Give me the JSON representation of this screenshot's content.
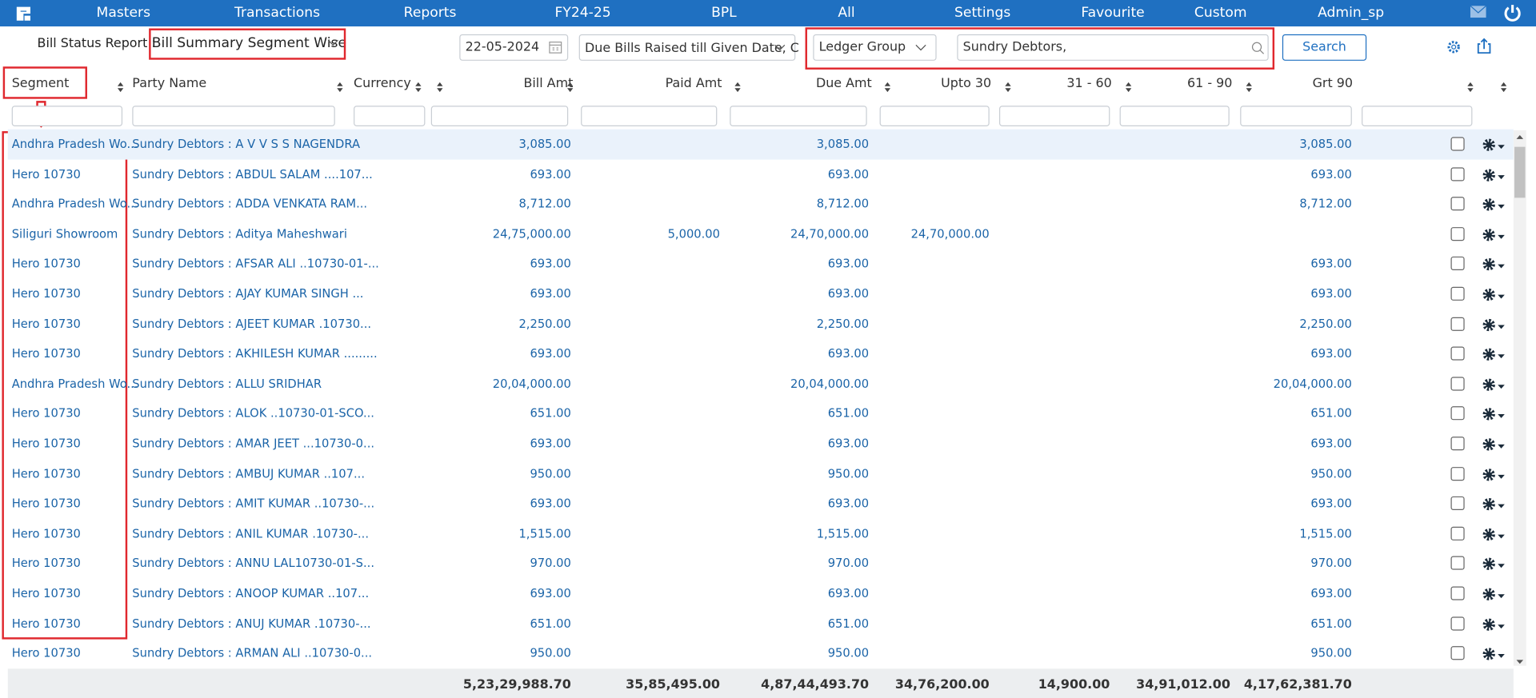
{
  "nav": [
    "Masters",
    "Transactions",
    "Reports",
    "FY24-25",
    "BPL",
    "All",
    "Settings",
    "Favourite",
    "Custom",
    "Admin_sp"
  ],
  "report": {
    "label": "Bill Status Report :",
    "name": "Bill Summary Segment Wise"
  },
  "filters": {
    "date": "22-05-2024",
    "due_option": "Due Bills Raised till Given Date, C",
    "ledger_type": "Ledger Group",
    "ledger_value": "Sundry Debtors,",
    "search": "Search"
  },
  "table": {
    "columns": [
      "Segment",
      "Party Name",
      "Currency",
      "Bill Amt",
      "Paid Amt",
      "Due Amt",
      "Upto 30",
      "31 - 60",
      "61 - 90",
      "Grt 90"
    ],
    "rows": [
      {
        "segment": "Andhra Pradesh Wo...",
        "party": "Sundry Debtors : A V V S S NAGENDRA",
        "bill": "3,085.00",
        "due": "3,085.00",
        "grt90": "3,085.00"
      },
      {
        "segment": "Hero 10730",
        "party": "Sundry Debtors : ABDUL SALAM ....107...",
        "bill": "693.00",
        "due": "693.00",
        "grt90": "693.00"
      },
      {
        "segment": "Andhra Pradesh Wo...",
        "party": "Sundry Debtors : ADDA VENKATA RAM...",
        "bill": "8,712.00",
        "due": "8,712.00",
        "grt90": "8,712.00"
      },
      {
        "segment": "Siliguri Showroom",
        "party": "Sundry Debtors : Aditya Maheshwari",
        "bill": "24,75,000.00",
        "paid": "5,000.00",
        "due": "24,70,000.00",
        "upto30": "24,70,000.00"
      },
      {
        "segment": "Hero 10730",
        "party": "Sundry Debtors : AFSAR ALI ..10730-01-...",
        "bill": "693.00",
        "due": "693.00",
        "grt90": "693.00"
      },
      {
        "segment": "Hero 10730",
        "party": "Sundry Debtors : AJAY KUMAR SINGH ...",
        "bill": "693.00",
        "due": "693.00",
        "grt90": "693.00"
      },
      {
        "segment": "Hero 10730",
        "party": "Sundry Debtors : AJEET KUMAR .10730...",
        "bill": "2,250.00",
        "due": "2,250.00",
        "grt90": "2,250.00"
      },
      {
        "segment": "Hero 10730",
        "party": "Sundry Debtors : AKHILESH KUMAR .........",
        "bill": "693.00",
        "due": "693.00",
        "grt90": "693.00"
      },
      {
        "segment": "Andhra Pradesh Wo...",
        "party": "Sundry Debtors : ALLU SRIDHAR",
        "bill": "20,04,000.00",
        "due": "20,04,000.00",
        "grt90": "20,04,000.00"
      },
      {
        "segment": "Hero 10730",
        "party": "Sundry Debtors : ALOK ..10730-01-SCO...",
        "bill": "651.00",
        "due": "651.00",
        "grt90": "651.00"
      },
      {
        "segment": "Hero 10730",
        "party": "Sundry Debtors : AMAR JEET ...10730-0...",
        "bill": "693.00",
        "due": "693.00",
        "grt90": "693.00"
      },
      {
        "segment": "Hero 10730",
        "party": "Sundry Debtors : AMBUJ KUMAR ..107...",
        "bill": "950.00",
        "due": "950.00",
        "grt90": "950.00"
      },
      {
        "segment": "Hero 10730",
        "party": "Sundry Debtors : AMIT KUMAR ..10730-...",
        "bill": "693.00",
        "due": "693.00",
        "grt90": "693.00"
      },
      {
        "segment": "Hero 10730",
        "party": "Sundry Debtors : ANIL KUMAR .10730-...",
        "bill": "1,515.00",
        "due": "1,515.00",
        "grt90": "1,515.00"
      },
      {
        "segment": "Hero 10730",
        "party": "Sundry Debtors : ANNU LAL10730-01-S...",
        "bill": "970.00",
        "due": "970.00",
        "grt90": "970.00"
      },
      {
        "segment": "Hero 10730",
        "party": "Sundry Debtors : ANOOP KUMAR ..107...",
        "bill": "693.00",
        "due": "693.00",
        "grt90": "693.00"
      },
      {
        "segment": "Hero 10730",
        "party": "Sundry Debtors : ANUJ KUMAR .10730-...",
        "bill": "651.00",
        "due": "651.00",
        "grt90": "651.00"
      },
      {
        "segment": "Hero 10730",
        "party": "Sundry Debtors : ARMAN ALI ..10730-0...",
        "bill": "950.00",
        "due": "950.00",
        "grt90": "950.00"
      }
    ],
    "totals": {
      "bill": "5,23,29,988.70",
      "paid": "35,85,495.00",
      "due": "4,87,44,493.70",
      "upto30": "34,76,200.00",
      "d31_60": "14,900.00",
      "d61_90": "34,91,012.00",
      "grt90": "4,17,62,381.70"
    }
  }
}
